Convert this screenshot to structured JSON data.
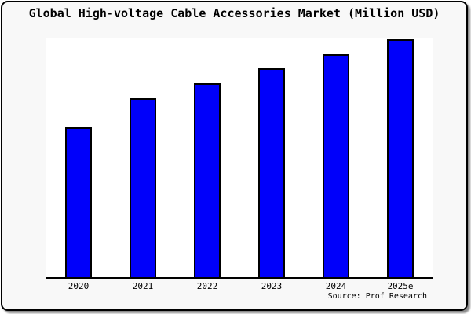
{
  "chart_data": {
    "type": "bar",
    "title": "Global High-voltage Cable Accessories Market (Million USD)",
    "categories": [
      "2020",
      "2021",
      "2022",
      "2023",
      "2024",
      "2025e"
    ],
    "series": [
      {
        "name": "Global High-voltage Cable Accessories Market",
        "values_relative_to_max": [
          0.629,
          0.752,
          0.815,
          0.877,
          0.937,
          1.0
        ]
      }
    ],
    "bar_heights_fraction_of_plot": [
      0.625,
      0.747,
      0.809,
      0.872,
      0.931,
      0.993
    ],
    "xlabel": "",
    "ylabel": "",
    "y_axis_labels_visible": false,
    "data_labels_visible": false,
    "grid": false,
    "legend_position": "none",
    "source": "Source: Prof Research",
    "colors": {
      "bar_fill": "#0000fa",
      "bar_border": "#000000",
      "plot_background": "#ffffff",
      "card_background": "#f8f8f8",
      "card_border": "#000000",
      "text": "#000000"
    }
  }
}
